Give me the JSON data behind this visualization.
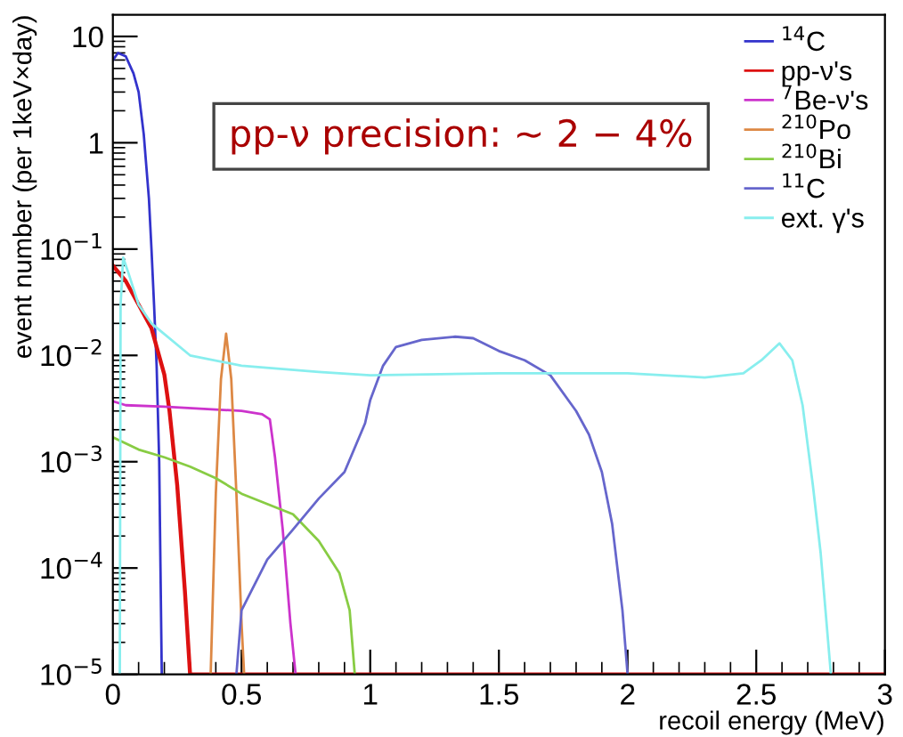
{
  "chart_data": {
    "type": "line",
    "xlabel": "recoil energy (MeV)",
    "ylabel": "event number (per 1keV×day)",
    "log": "y",
    "grid": false,
    "legend": "top right",
    "marker": "none",
    "line_style": "solid",
    "xlim": [
      0,
      3
    ],
    "xticks": [
      0,
      0.5,
      1,
      1.5,
      2,
      2.5,
      3
    ],
    "ylim": [
      1e-05,
      16
    ],
    "yticks": [
      {
        "value": 1e-05,
        "label": "10$^{−5}$"
      },
      {
        "value": 0.0001,
        "label": "10$^{−4}$"
      },
      {
        "value": 0.001,
        "label": "10$^{−3}$"
      },
      {
        "value": 0.01,
        "label": "10$^{−2}$"
      },
      {
        "value": 0.1,
        "label": "10$^{−1}$"
      },
      1,
      10
    ],
    "annotations": [
      "pp-ν precision: ∼ 2 − 4%"
    ],
    "series": [
      {
        "name": "$^{14}$C",
        "color": "#3333cc",
        "x": [
          0,
          0.02,
          0.05,
          0.08,
          0.1,
          0.12,
          0.14,
          0.15,
          0.16,
          0.17,
          0.18,
          0.185,
          0.19
        ],
        "values": [
          6,
          7,
          6.5,
          4.5,
          3,
          1.2,
          0.3,
          0.1,
          0.03,
          0.008,
          0.001,
          0.0001,
          1e-05
        ]
      },
      {
        "name": "pp-ν's",
        "color": "#dd1111",
        "x": [
          0,
          0.05,
          0.1,
          0.15,
          0.2,
          0.22,
          0.25,
          0.28,
          0.3,
          3
        ],
        "values": [
          0.07,
          0.05,
          0.03,
          0.018,
          0.0066,
          0.003,
          0.0006,
          6e-05,
          1e-05,
          1e-05
        ]
      },
      {
        "name": "$^{7}$Be-ν's",
        "color": "#cc33cc",
        "x": [
          0,
          0.05,
          0.2,
          0.4,
          0.5,
          0.58,
          0.61,
          0.63,
          0.66,
          0.69,
          0.71
        ],
        "values": [
          0.0037,
          0.0034,
          0.0033,
          0.0031,
          0.003,
          0.0028,
          0.0025,
          0.0011,
          0.00023,
          3e-05,
          1e-05
        ]
      },
      {
        "name": "$^{210}$Po",
        "color": "#dd8844",
        "x": [
          0.38,
          0.4,
          0.42,
          0.44,
          0.46,
          0.48,
          0.5,
          0.51
        ],
        "values": [
          1e-05,
          0.0005,
          0.006,
          0.016,
          0.006,
          0.0005,
          3e-05,
          1e-05
        ]
      },
      {
        "name": "$^{210}$Bi",
        "color": "#88cc44",
        "x": [
          0,
          0.1,
          0.2,
          0.3,
          0.4,
          0.5,
          0.6,
          0.7,
          0.8,
          0.88,
          0.92,
          0.94
        ],
        "values": [
          0.0017,
          0.0013,
          0.0011,
          0.0009,
          0.0007,
          0.0005,
          0.0004,
          0.00032,
          0.00018,
          9e-05,
          4e-05,
          1e-05
        ]
      },
      {
        "name": "$^{11}$C",
        "color": "#6666cc",
        "x": [
          0.48,
          0.5,
          0.6,
          0.7,
          0.8,
          0.9,
          0.98,
          1.0,
          1.05,
          1.1,
          1.2,
          1.33,
          1.4,
          1.5,
          1.6,
          1.7,
          1.8,
          1.85,
          1.9,
          1.94,
          1.98,
          2.0
        ],
        "values": [
          1e-05,
          4e-05,
          0.00012,
          0.00023,
          0.00045,
          0.0008,
          0.0023,
          0.0038,
          0.008,
          0.012,
          0.014,
          0.015,
          0.0145,
          0.011,
          0.009,
          0.0065,
          0.003,
          0.0018,
          0.0008,
          0.00026,
          4e-05,
          1e-05
        ]
      },
      {
        "name": "ext. γ's",
        "color": "#88eeee",
        "x": [
          0.027,
          0.03,
          0.04,
          0.06,
          0.1,
          0.15,
          0.3,
          0.5,
          0.8,
          1.0,
          1.5,
          2.0,
          2.3,
          2.45,
          2.52,
          2.59,
          2.64,
          2.68,
          2.72,
          2.75,
          2.79
        ],
        "values": [
          1e-05,
          0.03,
          0.083,
          0.06,
          0.03,
          0.02,
          0.01,
          0.008,
          0.007,
          0.0065,
          0.0068,
          0.0068,
          0.0062,
          0.0068,
          0.009,
          0.013,
          0.009,
          0.0034,
          0.0006,
          0.00014,
          1e-05
        ]
      }
    ]
  }
}
